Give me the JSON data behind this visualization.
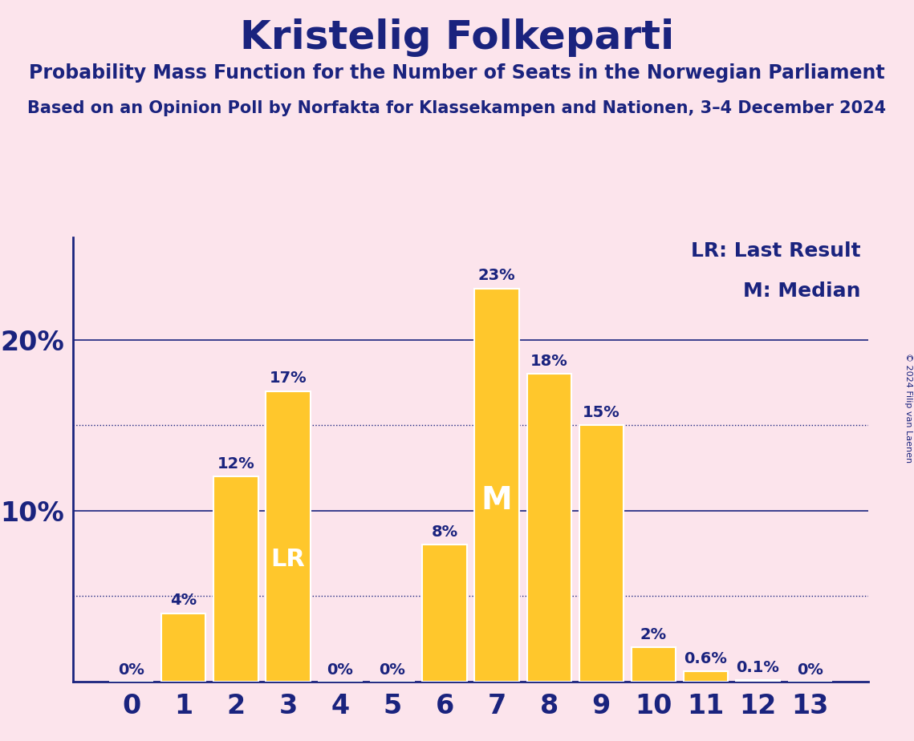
{
  "title": "Kristelig Folkeparti",
  "subtitle1": "Probability Mass Function for the Number of Seats in the Norwegian Parliament",
  "subtitle2": "Based on an Opinion Poll by Norfakta for Klassekampen and Nationen, 3–4 December 2024",
  "copyright": "© 2024 Filip van Laenen",
  "background_color": "#fce4ec",
  "bar_color": "#FFC72C",
  "bar_edge_color": "#ffffff",
  "title_color": "#1a237e",
  "text_color": "#1a237e",
  "axis_color": "#1a237e",
  "categories": [
    0,
    1,
    2,
    3,
    4,
    5,
    6,
    7,
    8,
    9,
    10,
    11,
    12,
    13
  ],
  "values": [
    0.0,
    4.0,
    12.0,
    17.0,
    0.0,
    0.0,
    8.0,
    23.0,
    18.0,
    15.0,
    2.0,
    0.6,
    0.1,
    0.0
  ],
  "value_labels": [
    "0%",
    "4%",
    "12%",
    "17%",
    "0%",
    "0%",
    "8%",
    "23%",
    "18%",
    "15%",
    "2%",
    "0.6%",
    "0.1%",
    "0%"
  ],
  "lr_bar": 3,
  "median_bar": 7,
  "lr_label": "LR",
  "median_label": "M",
  "legend_lr": "LR: Last Result",
  "legend_m": "M: Median",
  "ylim": [
    0,
    26
  ],
  "solid_gridlines": [
    10,
    20
  ],
  "dotted_gridlines": [
    5,
    15
  ]
}
